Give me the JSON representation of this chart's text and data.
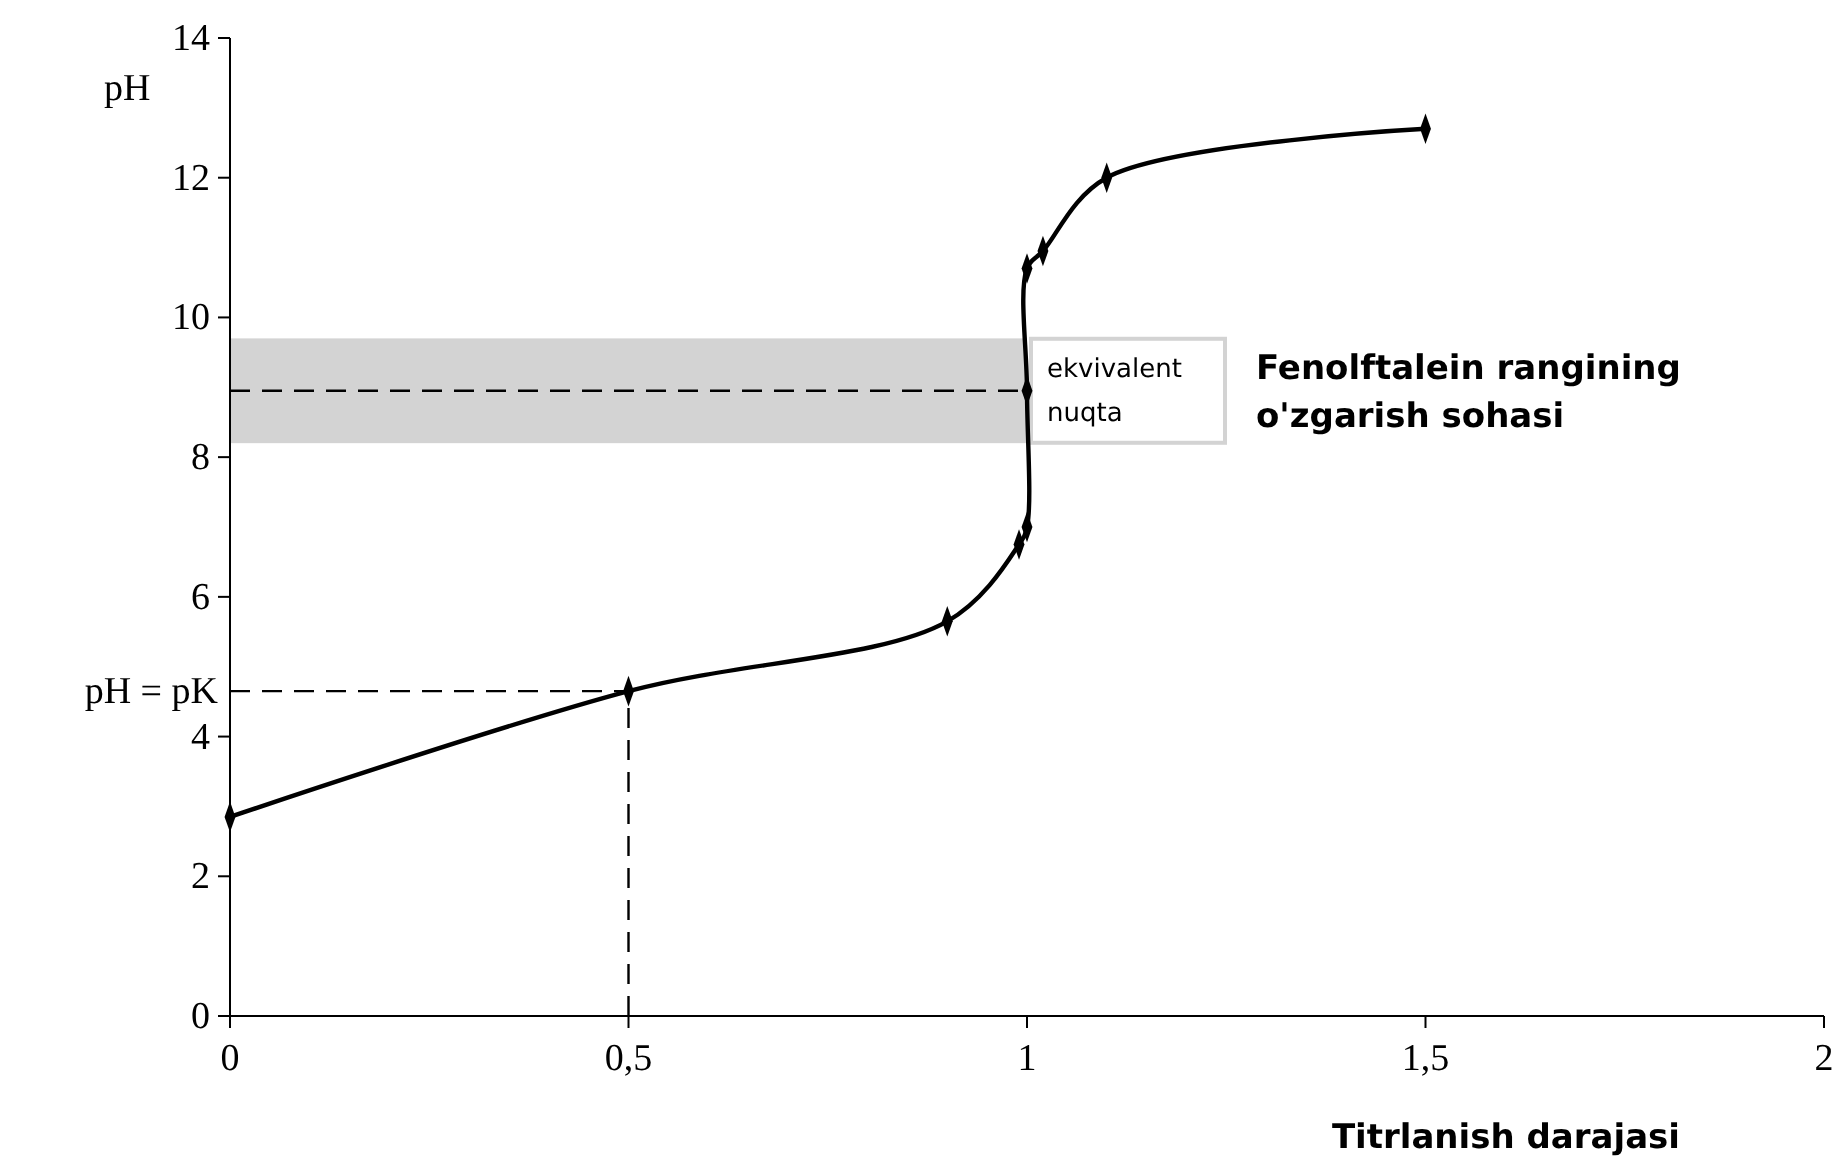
{
  "chart_data": {
    "type": "line",
    "ylabel": "pH",
    "xlabel": "Titrlanish darajasi",
    "xlim": [
      0,
      2
    ],
    "xticks": [
      0,
      {
        "value": 0.5,
        "label": "0,5"
      },
      1,
      {
        "value": 1.5,
        "label": "1,5"
      },
      2
    ],
    "ylim": [
      0,
      14
    ],
    "yticks": [
      0,
      2,
      4,
      6,
      8,
      10,
      12,
      14
    ],
    "series": [
      {
        "color": "#000000",
        "x": [
          0,
          0.5,
          0.9,
          0.99,
          1.0,
          1.0,
          1.0,
          1.02,
          1.1,
          1.5
        ],
        "values": [
          2.85,
          4.65,
          5.65,
          6.75,
          7.0,
          8.95,
          10.7,
          10.95,
          12.0,
          12.7
        ]
      }
    ],
    "marker": "diamond",
    "line_style": "solid",
    "grid": false,
    "annotations": [
      "Fenolftalein rangining o'zgarish sohasi"
    ],
    "ref_lines": [
      {
        "axis": "y",
        "value": 8.95,
        "label": "ekvivalent nuqta",
        "line_style": "dashed",
        "color": "#000000"
      },
      {
        "axis": "y",
        "value": 4.65,
        "label": "pH = pK",
        "line_style": "dashed",
        "color": "#000000"
      },
      {
        "axis": "x",
        "value": 0.5,
        "line_style": "dashed",
        "color": "#000000"
      }
    ],
    "bands": [
      {
        "axis": "y",
        "from": 8.2,
        "to": 9.7,
        "color": "#d3d3d3"
      }
    ]
  }
}
